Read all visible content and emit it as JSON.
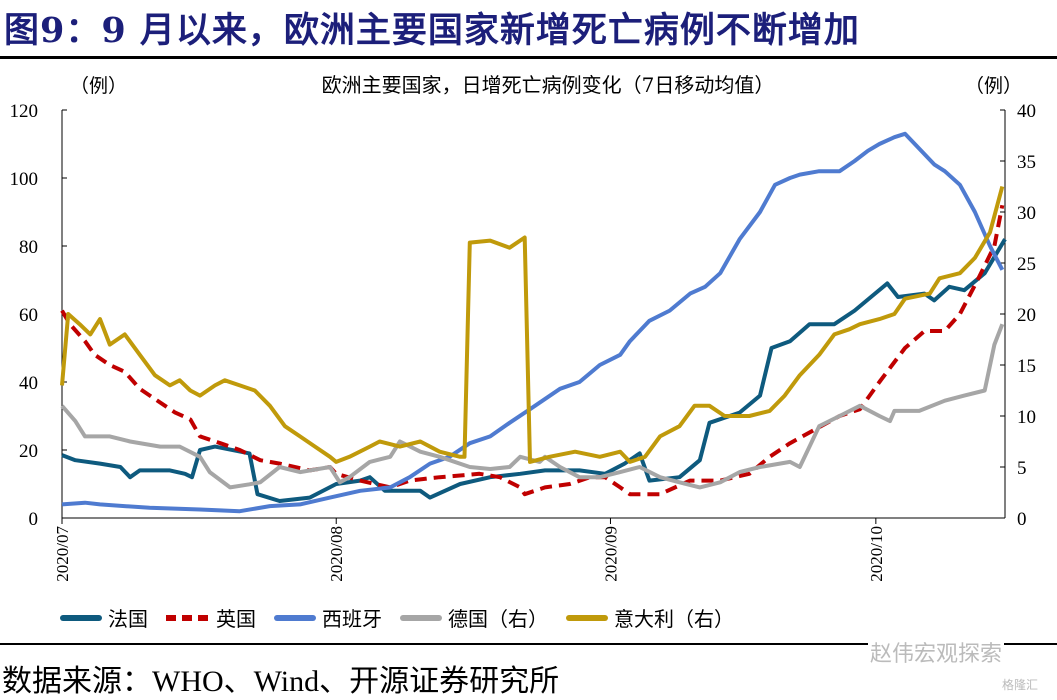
{
  "header": {
    "title": "图9：9 月以来，欧洲主要国家新增死亡病例不断增加"
  },
  "footer": {
    "source": "数据来源：WHO、Wind、开源证券研究所"
  },
  "watermarks": {
    "wechat": "赵伟宏观探索",
    "gelonghui": "格隆汇"
  },
  "chart_data": {
    "type": "line",
    "title": "欧洲主要国家，日增死亡病例变化（7日移动均值）",
    "ylabel_left": "（例）",
    "ylabel_right": "（例）",
    "xlabel": "",
    "x_unit": "days since 2020-07-01",
    "xlim": [
      0,
      106.6
    ],
    "ylim_left": [
      0,
      120
    ],
    "ylim_right": [
      0,
      40
    ],
    "yticks_left": [
      0,
      20,
      40,
      60,
      80,
      100,
      120
    ],
    "yticks_right": [
      0,
      5,
      10,
      15,
      20,
      25,
      30,
      35,
      40
    ],
    "xticks": [
      {
        "x": 0,
        "label": "2020/07"
      },
      {
        "x": 31,
        "label": "2020/08"
      },
      {
        "x": 62,
        "label": "2020/09"
      },
      {
        "x": 92,
        "label": "2020/10"
      }
    ],
    "grid": false,
    "legend_position": "bottom",
    "series": [
      {
        "name": "法国",
        "axis": "left",
        "color": "#0e5a7e",
        "dashed": false,
        "points": [
          [
            0,
            18.5
          ],
          [
            1.5,
            17
          ],
          [
            4.3,
            16
          ],
          [
            6.6,
            15
          ],
          [
            7.7,
            12
          ],
          [
            8.8,
            14
          ],
          [
            12.2,
            14
          ],
          [
            13.9,
            13
          ],
          [
            14.7,
            12
          ],
          [
            15.6,
            20
          ],
          [
            17.3,
            21
          ],
          [
            21.2,
            19
          ],
          [
            22.1,
            7
          ],
          [
            24.6,
            5
          ],
          [
            28,
            6
          ],
          [
            31,
            10
          ],
          [
            33.7,
            11
          ],
          [
            34.8,
            12
          ],
          [
            36.5,
            8
          ],
          [
            40.5,
            8
          ],
          [
            41.6,
            6
          ],
          [
            45,
            10
          ],
          [
            48.4,
            12
          ],
          [
            51.8,
            13
          ],
          [
            54.6,
            14
          ],
          [
            58.5,
            14
          ],
          [
            61.4,
            13
          ],
          [
            63.6,
            16
          ],
          [
            65.3,
            19
          ],
          [
            66.4,
            11
          ],
          [
            69.8,
            12
          ],
          [
            72.1,
            17
          ],
          [
            73.2,
            28
          ],
          [
            76.6,
            31
          ],
          [
            78.9,
            36
          ],
          [
            80.2,
            50
          ],
          [
            82.3,
            52
          ],
          [
            84.5,
            57
          ],
          [
            87.3,
            57
          ],
          [
            89.6,
            61
          ],
          [
            91.9,
            66
          ],
          [
            93.3,
            69
          ],
          [
            94.5,
            65
          ],
          [
            97.5,
            66
          ],
          [
            98.6,
            64
          ],
          [
            100.3,
            68
          ],
          [
            102,
            67
          ],
          [
            104.3,
            72
          ],
          [
            106.6,
            82
          ]
        ]
      },
      {
        "name": "英国",
        "axis": "left",
        "color": "#c00000",
        "dashed": true,
        "points": [
          [
            0,
            61
          ],
          [
            0.9,
            57
          ],
          [
            2.6,
            52
          ],
          [
            3.7,
            48
          ],
          [
            5.4,
            45
          ],
          [
            7.1,
            43
          ],
          [
            8.8,
            38
          ],
          [
            10.5,
            35
          ],
          [
            12.8,
            31
          ],
          [
            14.5,
            29
          ],
          [
            15.6,
            24
          ],
          [
            17.9,
            22
          ],
          [
            20.1,
            20
          ],
          [
            22.4,
            17
          ],
          [
            24.6,
            16
          ],
          [
            28,
            14
          ],
          [
            30.3,
            15
          ],
          [
            31,
            13
          ],
          [
            33.7,
            11
          ],
          [
            37.1,
            9
          ],
          [
            39.3,
            11
          ],
          [
            42.7,
            12
          ],
          [
            47.2,
            13
          ],
          [
            49.5,
            12
          ],
          [
            51.8,
            9
          ],
          [
            52.3,
            7
          ],
          [
            54.6,
            9
          ],
          [
            57.4,
            10
          ],
          [
            59.7,
            12
          ],
          [
            61.4,
            12
          ],
          [
            63.1,
            9
          ],
          [
            64.2,
            7
          ],
          [
            67.6,
            7
          ],
          [
            71,
            11
          ],
          [
            74.4,
            11
          ],
          [
            77.7,
            13
          ],
          [
            80,
            18
          ],
          [
            82.3,
            22
          ],
          [
            85.1,
            26
          ],
          [
            87.9,
            30
          ],
          [
            90.2,
            32
          ],
          [
            92.4,
            40
          ],
          [
            95.3,
            50
          ],
          [
            97.5,
            55
          ],
          [
            99.8,
            55
          ],
          [
            101.5,
            60
          ],
          [
            103.5,
            70
          ],
          [
            105.4,
            80
          ],
          [
            106.3,
            92
          ]
        ]
      },
      {
        "name": "西班牙",
        "axis": "left",
        "color": "#4f7bd0",
        "dashed": false,
        "points": [
          [
            0,
            4
          ],
          [
            2.6,
            4.5
          ],
          [
            4.3,
            4
          ],
          [
            9.9,
            3
          ],
          [
            15.6,
            2.5
          ],
          [
            20.1,
            2
          ],
          [
            23.5,
            3.5
          ],
          [
            26.9,
            4
          ],
          [
            30.3,
            6
          ],
          [
            33.7,
            8
          ],
          [
            37.1,
            9
          ],
          [
            39.3,
            12
          ],
          [
            41.6,
            16
          ],
          [
            43.8,
            18
          ],
          [
            46.1,
            22
          ],
          [
            48.4,
            24
          ],
          [
            50.6,
            28
          ],
          [
            52.9,
            32
          ],
          [
            56.3,
            38
          ],
          [
            58.5,
            40
          ],
          [
            60.8,
            45
          ],
          [
            63.1,
            48
          ],
          [
            64.2,
            52
          ],
          [
            66.4,
            58
          ],
          [
            68.7,
            61
          ],
          [
            71,
            66
          ],
          [
            72.7,
            68
          ],
          [
            74.4,
            72
          ],
          [
            76.6,
            82
          ],
          [
            78.9,
            90
          ],
          [
            80.6,
            98
          ],
          [
            82.3,
            100
          ],
          [
            83.4,
            101
          ],
          [
            85.6,
            102
          ],
          [
            87.9,
            102
          ],
          [
            89.6,
            105
          ],
          [
            91.1,
            108
          ],
          [
            92.4,
            110
          ],
          [
            94.1,
            112
          ],
          [
            95.3,
            113
          ],
          [
            96.4,
            110
          ],
          [
            98.6,
            104
          ],
          [
            99.8,
            102
          ],
          [
            101.5,
            98
          ],
          [
            103.2,
            90
          ],
          [
            104.9,
            80
          ],
          [
            106.3,
            73
          ]
        ]
      },
      {
        "name": "德国（右）",
        "axis": "right",
        "color": "#a6a6a6",
        "dashed": false,
        "points": [
          [
            0,
            11
          ],
          [
            1.5,
            9.5
          ],
          [
            2.6,
            8
          ],
          [
            5.4,
            8
          ],
          [
            7.7,
            7.5
          ],
          [
            11.1,
            7
          ],
          [
            13.3,
            7
          ],
          [
            15.6,
            6
          ],
          [
            16.7,
            4.5
          ],
          [
            19,
            3
          ],
          [
            21.2,
            3.3
          ],
          [
            22.4,
            3.5
          ],
          [
            24.6,
            5
          ],
          [
            26.9,
            4.5
          ],
          [
            30.3,
            5
          ],
          [
            31.4,
            3.5
          ],
          [
            32.5,
            4
          ],
          [
            34.8,
            5.5
          ],
          [
            37.1,
            6
          ],
          [
            38.2,
            7.5
          ],
          [
            40.5,
            6.5
          ],
          [
            42.7,
            6
          ],
          [
            46.1,
            5
          ],
          [
            48.4,
            4.8
          ],
          [
            50.6,
            5
          ],
          [
            51.8,
            6
          ],
          [
            54,
            5.5
          ],
          [
            54.6,
            6
          ],
          [
            56.3,
            5
          ],
          [
            58.5,
            4
          ],
          [
            60.8,
            4
          ],
          [
            63.1,
            4.5
          ],
          [
            65.3,
            5
          ],
          [
            67.6,
            4
          ],
          [
            69.8,
            3.5
          ],
          [
            72.1,
            3
          ],
          [
            74.4,
            3.5
          ],
          [
            76.6,
            4.5
          ],
          [
            78.9,
            5
          ],
          [
            82.3,
            5.5
          ],
          [
            83.4,
            5
          ],
          [
            85.6,
            9
          ],
          [
            87.9,
            10
          ],
          [
            90.2,
            11
          ],
          [
            92.4,
            10
          ],
          [
            93.6,
            9.5
          ],
          [
            94.1,
            10.5
          ],
          [
            96.9,
            10.5
          ],
          [
            99.8,
            11.5
          ],
          [
            102,
            12
          ],
          [
            104.3,
            12.5
          ],
          [
            105.4,
            17
          ],
          [
            106.3,
            19
          ]
        ]
      },
      {
        "name": "意大利（右）",
        "axis": "right",
        "color": "#c09a0b",
        "dashed": false,
        "points": [
          [
            0,
            13
          ],
          [
            0.7,
            20
          ],
          [
            2,
            19
          ],
          [
            3.2,
            18
          ],
          [
            4.3,
            19.5
          ],
          [
            5.4,
            17
          ],
          [
            7.1,
            18
          ],
          [
            8.8,
            16
          ],
          [
            10.5,
            14
          ],
          [
            12.2,
            13
          ],
          [
            13.3,
            13.5
          ],
          [
            14.5,
            12.5
          ],
          [
            15.6,
            12
          ],
          [
            17.3,
            13
          ],
          [
            18.4,
            13.5
          ],
          [
            20.1,
            13
          ],
          [
            21.8,
            12.5
          ],
          [
            23.5,
            11
          ],
          [
            25.2,
            9
          ],
          [
            26.9,
            8
          ],
          [
            28.6,
            7
          ],
          [
            30.3,
            6
          ],
          [
            31,
            5.5
          ],
          [
            32.5,
            6
          ],
          [
            34.8,
            7
          ],
          [
            35.9,
            7.5
          ],
          [
            38.2,
            7
          ],
          [
            40.5,
            7.5
          ],
          [
            42.7,
            6.5
          ],
          [
            45,
            6
          ],
          [
            45.5,
            6
          ],
          [
            46.1,
            27
          ],
          [
            48.4,
            27.2
          ],
          [
            50.6,
            26.5
          ],
          [
            52.3,
            27.5
          ],
          [
            52.9,
            5.5
          ],
          [
            55.1,
            6
          ],
          [
            58,
            6.5
          ],
          [
            60.8,
            6
          ],
          [
            63.1,
            6.5
          ],
          [
            64.2,
            5.5
          ],
          [
            65.9,
            6
          ],
          [
            67.6,
            8
          ],
          [
            69.8,
            9
          ],
          [
            71.5,
            11
          ],
          [
            73.2,
            11
          ],
          [
            74.9,
            10
          ],
          [
            77.7,
            10
          ],
          [
            80,
            10.5
          ],
          [
            81.7,
            12
          ],
          [
            83.4,
            14
          ],
          [
            85.6,
            16
          ],
          [
            87.3,
            18
          ],
          [
            89,
            18.5
          ],
          [
            90.2,
            19
          ],
          [
            92.4,
            19.5
          ],
          [
            94.1,
            20
          ],
          [
            95.3,
            21.5
          ],
          [
            98.1,
            22
          ],
          [
            99.2,
            23.5
          ],
          [
            101.5,
            24
          ],
          [
            103.2,
            25.5
          ],
          [
            104.9,
            28
          ],
          [
            106.3,
            32.5
          ]
        ]
      }
    ]
  }
}
